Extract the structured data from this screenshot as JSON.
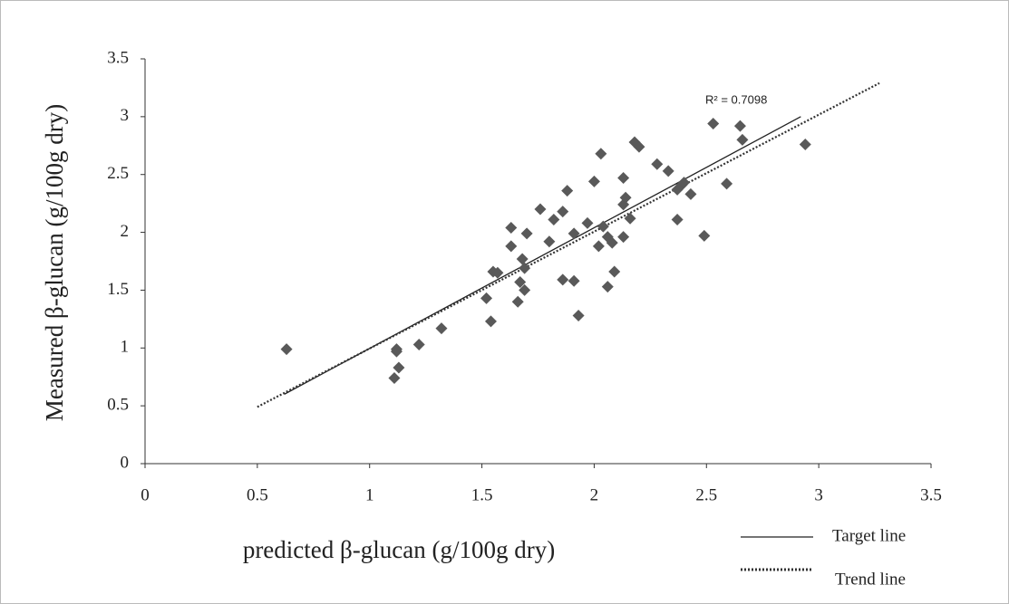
{
  "chart_data": {
    "type": "scatter",
    "x_label": "predicted β-glucan (g/100g dry)",
    "y_label": "Measured β-glucan (g/100g dry)",
    "annotation": "R² = 0.7098",
    "color": "#595959",
    "x": [
      0.63,
      1.12,
      1.12,
      1.13,
      1.11,
      1.22,
      1.32,
      1.52,
      1.54,
      1.55,
      1.57,
      1.63,
      1.63,
      1.66,
      1.67,
      1.68,
      1.69,
      1.69,
      1.7,
      1.76,
      1.8,
      1.82,
      1.86,
      1.86,
      1.88,
      1.91,
      1.91,
      1.93,
      1.97,
      2.0,
      2.02,
      2.03,
      2.04,
      2.06,
      2.06,
      2.08,
      2.09,
      2.13,
      2.13,
      2.13,
      2.14,
      2.16,
      2.18,
      2.2,
      2.28,
      2.33,
      2.37,
      2.37,
      2.39,
      2.4,
      2.43,
      2.49,
      2.53,
      2.59,
      2.65,
      2.66,
      2.94
    ],
    "y": [
      0.99,
      0.99,
      0.97,
      0.83,
      0.74,
      1.03,
      1.17,
      1.43,
      1.23,
      1.66,
      1.65,
      1.88,
      2.04,
      1.4,
      1.57,
      1.77,
      1.5,
      1.69,
      1.99,
      2.2,
      1.92,
      2.11,
      1.59,
      2.18,
      2.36,
      1.99,
      1.58,
      1.28,
      2.08,
      2.44,
      1.88,
      2.68,
      2.05,
      1.96,
      1.53,
      1.91,
      1.66,
      2.47,
      1.96,
      2.24,
      2.3,
      2.12,
      2.78,
      2.74,
      2.59,
      2.53,
      2.11,
      2.37,
      2.41,
      2.43,
      2.33,
      1.97,
      2.94,
      2.42,
      2.92,
      2.8,
      2.76
    ],
    "lines": [
      {
        "name": "Target line",
        "x": [
          0.62,
          2.92
        ],
        "y": [
          0.6,
          3.0
        ],
        "style": "solid",
        "color": "#222222"
      },
      {
        "name": "Trend line",
        "x": [
          0.5,
          3.27
        ],
        "y": [
          0.49,
          3.29
        ],
        "style": "dotted",
        "color": "#333333"
      }
    ],
    "xlim": [
      0,
      3.5
    ],
    "ylim": [
      0,
      3.5
    ],
    "xticks": [
      0,
      0.5,
      1,
      1.5,
      2,
      2.5,
      3,
      3.5
    ],
    "yticks": [
      0,
      0.5,
      1,
      1.5,
      2,
      2.5,
      3,
      3.5
    ],
    "grid": false
  }
}
